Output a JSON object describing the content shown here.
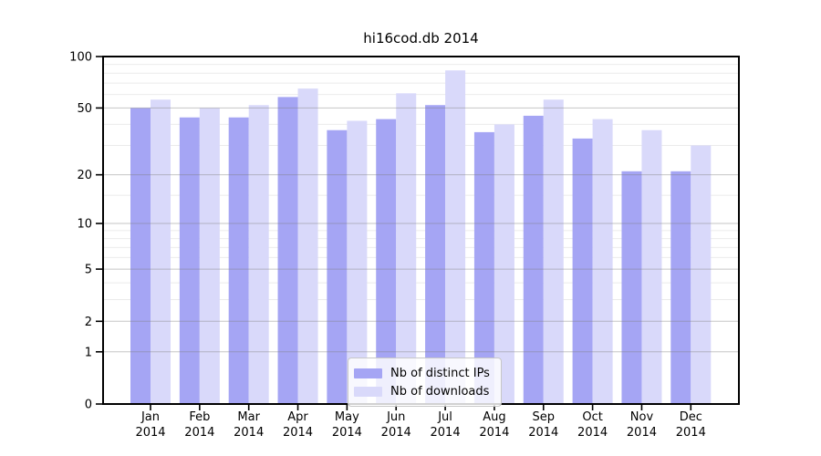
{
  "title": "hi16cod.db 2014",
  "chart_data": {
    "type": "bar",
    "title": "hi16cod.db 2014",
    "categories": [
      "Jan",
      "Feb",
      "Mar",
      "Apr",
      "May",
      "Jun",
      "Jul",
      "Aug",
      "Sep",
      "Oct",
      "Nov",
      "Dec"
    ],
    "category_year": "2014",
    "series": [
      {
        "name": "Nb of distinct IPs",
        "color": "#a5a5f4",
        "values": [
          50,
          44,
          44,
          58,
          37,
          43,
          52,
          36,
          45,
          33,
          21,
          21
        ]
      },
      {
        "name": "Nb of downloads",
        "color": "#d9d9fa",
        "values": [
          56,
          50,
          52,
          65,
          42,
          61,
          83,
          40,
          56,
          43,
          37,
          30
        ]
      }
    ],
    "yscale": "log10(value+1)",
    "ylim": [
      0,
      100
    ],
    "yticks": [
      100,
      50,
      20,
      10,
      5,
      2,
      1,
      0
    ],
    "minor_gridlines": [
      90,
      80,
      70,
      60,
      40,
      30,
      15,
      9,
      8,
      7,
      6,
      4,
      3
    ],
    "grid": true,
    "legend_position": "lower-center"
  }
}
